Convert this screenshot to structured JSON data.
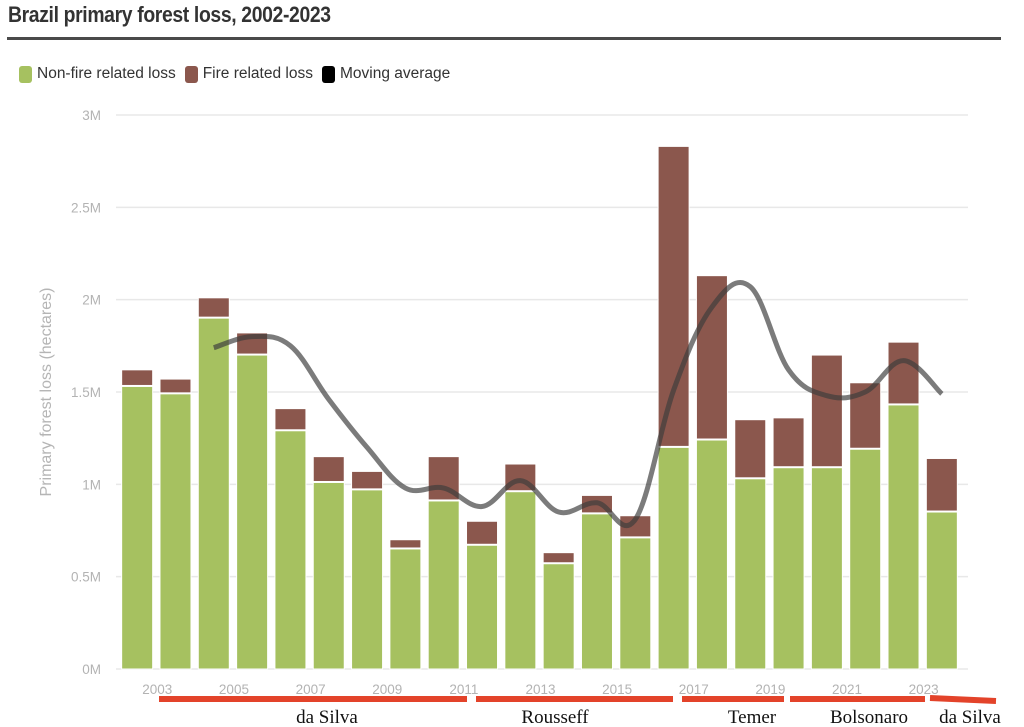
{
  "title": "Brazil primary forest loss, 2002-2023",
  "legend": [
    {
      "label": "Non-fire related loss",
      "color": "#a6c160",
      "icon": "green-square"
    },
    {
      "label": "Fire related loss",
      "color": "#8b574d",
      "icon": "brown-square"
    },
    {
      "label": "Moving average",
      "color": "#000000",
      "icon": "black-square"
    }
  ],
  "chart_data": {
    "type": "bar",
    "stacked": true,
    "title": "Brazil primary forest loss, 2002-2023",
    "xlabel": "",
    "ylabel": "Primary forest loss (hectares)",
    "ylim": [
      0,
      3000000
    ],
    "yticks": [
      0,
      500000,
      1000000,
      1500000,
      2000000,
      2500000,
      3000000
    ],
    "ytick_labels": [
      "0M",
      "0.5M",
      "1M",
      "1.5M",
      "2M",
      "2.5M",
      "3M"
    ],
    "grid": true,
    "legend_position": "top-left",
    "categories": [
      "2002",
      "2003",
      "2004",
      "2005",
      "2006",
      "2007",
      "2008",
      "2009",
      "2010",
      "2011",
      "2012",
      "2013",
      "2014",
      "2015",
      "2016",
      "2017",
      "2018",
      "2019",
      "2020",
      "2021",
      "2022",
      "2023"
    ],
    "xtick_labels": [
      "2003",
      "2005",
      "2007",
      "2009",
      "2011",
      "2013",
      "2015",
      "2017",
      "2019",
      "2021",
      "2023"
    ],
    "series": [
      {
        "name": "Non-fire related loss",
        "color": "#a6c160",
        "values": [
          1530000,
          1490000,
          1900000,
          1700000,
          1290000,
          1010000,
          970000,
          650000,
          910000,
          670000,
          960000,
          570000,
          840000,
          710000,
          1200000,
          1240000,
          1030000,
          1090000,
          1090000,
          1190000,
          1430000,
          850000
        ]
      },
      {
        "name": "Fire related loss",
        "color": "#8b574d",
        "values": [
          90000,
          80000,
          110000,
          120000,
          120000,
          140000,
          100000,
          50000,
          240000,
          130000,
          150000,
          60000,
          100000,
          120000,
          1630000,
          890000,
          320000,
          270000,
          610000,
          360000,
          340000,
          290000
        ]
      },
      {
        "name": "Moving average",
        "color": "#000000",
        "type": "line",
        "values": [
          null,
          null,
          1740000,
          1800000,
          1750000,
          1460000,
          1200000,
          980000,
          980000,
          880000,
          1020000,
          850000,
          900000,
          810000,
          1510000,
          1960000,
          2070000,
          1620000,
          1480000,
          1500000,
          1670000,
          1490000
        ]
      }
    ],
    "annotations": [
      {
        "label": "da Silva",
        "from": "2003",
        "to": "2010"
      },
      {
        "label": "Rousseff",
        "from": "2011",
        "to": "2016"
      },
      {
        "label": "Temer",
        "from": "2016",
        "to": "2018"
      },
      {
        "label": "Bolsonaro",
        "from": "2019",
        "to": "2022"
      },
      {
        "label": "da Silva",
        "from": "2023",
        "to": "2023"
      }
    ],
    "annotation_color": "#e3432a"
  }
}
